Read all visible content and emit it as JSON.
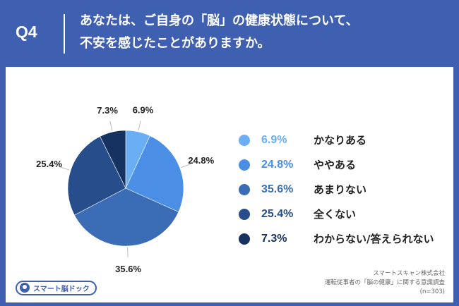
{
  "header": {
    "question_number": "Q4",
    "title_line1": "あなたは、ご自身の「脳」の健康状態について、",
    "title_line2": "不安を感じたことがありますか。"
  },
  "chart_data": {
    "type": "pie",
    "title": "",
    "start_angle_deg": 0,
    "direction": "clockwise",
    "slices": [
      {
        "label": "かなりある",
        "value": 6.9,
        "value_text": "6.9%",
        "color": "#6aaef5"
      },
      {
        "label": "ややある",
        "value": 24.8,
        "value_text": "24.8%",
        "color": "#4a8ee6"
      },
      {
        "label": "あまりない",
        "value": 35.6,
        "value_text": "35.6%",
        "color": "#3a6db5"
      },
      {
        "label": "全くない",
        "value": 25.4,
        "value_text": "25.4%",
        "color": "#274d8a"
      },
      {
        "label": "わからない/答えられない",
        "value": 7.3,
        "value_text": "7.3%",
        "color": "#163261"
      }
    ],
    "legend_position": "right"
  },
  "colors": {
    "background": "#3f5fb0",
    "card": "#ffffff"
  },
  "footer": {
    "logo_text": "スマート脳ドック",
    "source_line1": "スマートスキャン株式会社",
    "source_line2": "運転従事者の「脳の健康」に関する意識調査",
    "source_line3": "(n=303)"
  }
}
